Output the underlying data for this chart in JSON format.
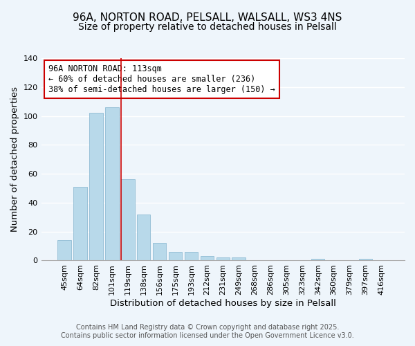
{
  "title": "96A, NORTON ROAD, PELSALL, WALSALL, WS3 4NS",
  "subtitle": "Size of property relative to detached houses in Pelsall",
  "xlabel": "Distribution of detached houses by size in Pelsall",
  "ylabel": "Number of detached properties",
  "categories": [
    "45sqm",
    "64sqm",
    "82sqm",
    "101sqm",
    "119sqm",
    "138sqm",
    "156sqm",
    "175sqm",
    "193sqm",
    "212sqm",
    "231sqm",
    "249sqm",
    "268sqm",
    "286sqm",
    "305sqm",
    "323sqm",
    "342sqm",
    "360sqm",
    "379sqm",
    "397sqm",
    "416sqm"
  ],
  "values": [
    14,
    51,
    102,
    106,
    56,
    32,
    12,
    6,
    6,
    3,
    2,
    2,
    0,
    0,
    0,
    0,
    1,
    0,
    0,
    1,
    0
  ],
  "bar_color": "#b8d9ea",
  "bar_edge_color": "#90bcd4",
  "reference_line_color": "#cc0000",
  "reference_line_x": 3.575,
  "annotation_text": "96A NORTON ROAD: 113sqm\n← 60% of detached houses are smaller (236)\n38% of semi-detached houses are larger (150) →",
  "annotation_box_color": "white",
  "annotation_box_edge_color": "#cc0000",
  "ylim": [
    0,
    140
  ],
  "yticks": [
    0,
    20,
    40,
    60,
    80,
    100,
    120,
    140
  ],
  "footer_text": "Contains HM Land Registry data © Crown copyright and database right 2025.\nContains public sector information licensed under the Open Government Licence v3.0.",
  "background_color": "#eef5fb",
  "grid_color": "#ffffff",
  "title_fontsize": 11,
  "subtitle_fontsize": 10,
  "axis_label_fontsize": 9.5,
  "tick_fontsize": 8,
  "annotation_fontsize": 8.5,
  "footer_fontsize": 7,
  "footer_color": "#555555"
}
